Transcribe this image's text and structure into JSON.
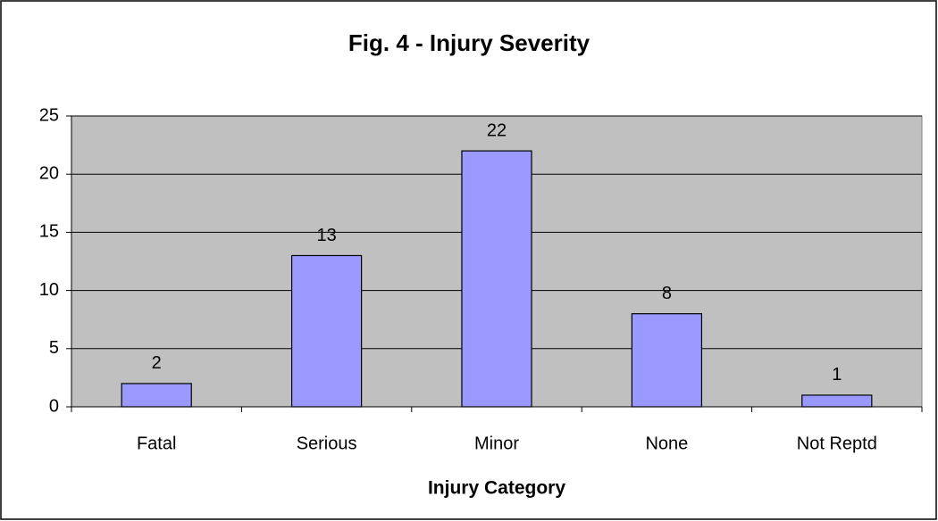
{
  "chart_data": {
    "type": "bar",
    "title": "Fig. 4 - Injury Severity",
    "x_label": "Injury Category",
    "categories": [
      "Fatal",
      "Serious",
      "Minor",
      "None",
      "Not Reptd"
    ],
    "values": [
      2,
      13,
      22,
      8,
      1
    ],
    "color": "#9999ff",
    "ylim": [
      0,
      25
    ],
    "yticks": [
      0,
      5,
      10,
      15,
      20,
      25
    ],
    "grid": true,
    "data_labels": true
  }
}
